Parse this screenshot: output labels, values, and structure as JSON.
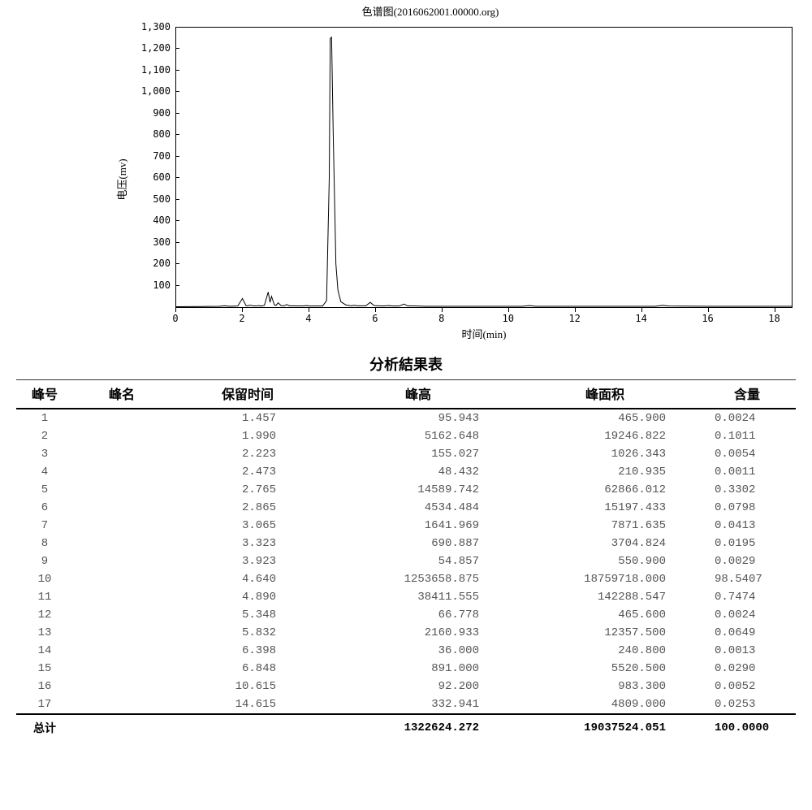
{
  "chart": {
    "type": "line",
    "title": "色谱图(2016062001.00000.org)",
    "xlabel": "时间(min)",
    "ylabel": "电压(mv)",
    "xlim": [
      0,
      18.5
    ],
    "ylim": [
      0,
      1300
    ],
    "xtick_step": 2,
    "xtick_count": 10,
    "ytick_step": 100,
    "ytick_count": 14,
    "line_color": "#000000",
    "line_width": 1,
    "background_color": "#ffffff",
    "border_color": "#000000",
    "title_fontsize": 13,
    "label_fontsize": 13,
    "tick_fontsize": 12,
    "points": [
      [
        0.0,
        2
      ],
      [
        0.8,
        3
      ],
      [
        1.3,
        4
      ],
      [
        1.457,
        6
      ],
      [
        1.6,
        4
      ],
      [
        1.85,
        5
      ],
      [
        1.99,
        40
      ],
      [
        2.1,
        6
      ],
      [
        2.15,
        6
      ],
      [
        2.223,
        9
      ],
      [
        2.3,
        6
      ],
      [
        2.4,
        5
      ],
      [
        2.473,
        7
      ],
      [
        2.55,
        5
      ],
      [
        2.65,
        8
      ],
      [
        2.765,
        70
      ],
      [
        2.82,
        22
      ],
      [
        2.865,
        50
      ],
      [
        2.95,
        10
      ],
      [
        3.0,
        8
      ],
      [
        3.065,
        20
      ],
      [
        3.15,
        7
      ],
      [
        3.25,
        6
      ],
      [
        3.323,
        12
      ],
      [
        3.4,
        6
      ],
      [
        3.8,
        5
      ],
      [
        3.923,
        7
      ],
      [
        4.0,
        5
      ],
      [
        4.4,
        5
      ],
      [
        4.52,
        30
      ],
      [
        4.6,
        600
      ],
      [
        4.63,
        1250
      ],
      [
        4.67,
        1255
      ],
      [
        4.72,
        800
      ],
      [
        4.8,
        200
      ],
      [
        4.86,
        80
      ],
      [
        4.89,
        60
      ],
      [
        4.95,
        25
      ],
      [
        5.1,
        10
      ],
      [
        5.25,
        6
      ],
      [
        5.348,
        8
      ],
      [
        5.45,
        6
      ],
      [
        5.7,
        6
      ],
      [
        5.832,
        22
      ],
      [
        5.95,
        7
      ],
      [
        6.2,
        5
      ],
      [
        6.398,
        7
      ],
      [
        6.5,
        5
      ],
      [
        6.7,
        5
      ],
      [
        6.848,
        14
      ],
      [
        6.95,
        6
      ],
      [
        7.5,
        4
      ],
      [
        8.5,
        4
      ],
      [
        9.5,
        4
      ],
      [
        10.4,
        4
      ],
      [
        10.615,
        7
      ],
      [
        10.8,
        4
      ],
      [
        12.0,
        4
      ],
      [
        13.5,
        4
      ],
      [
        14.4,
        4
      ],
      [
        14.615,
        8
      ],
      [
        14.8,
        5
      ],
      [
        16.0,
        4
      ],
      [
        17.5,
        4
      ],
      [
        18.5,
        4
      ]
    ]
  },
  "table": {
    "title": "分析結果表",
    "columns": [
      "峰号",
      "峰名",
      "保留时间",
      "峰高",
      "峰面积",
      "含量"
    ],
    "rows": [
      [
        "1",
        "",
        "1.457",
        "95.943",
        "465.900",
        "0.0024"
      ],
      [
        "2",
        "",
        "1.990",
        "5162.648",
        "19246.822",
        "0.1011"
      ],
      [
        "3",
        "",
        "2.223",
        "155.027",
        "1026.343",
        "0.0054"
      ],
      [
        "4",
        "",
        "2.473",
        "48.432",
        "210.935",
        "0.0011"
      ],
      [
        "5",
        "",
        "2.765",
        "14589.742",
        "62866.012",
        "0.3302"
      ],
      [
        "6",
        "",
        "2.865",
        "4534.484",
        "15197.433",
        "0.0798"
      ],
      [
        "7",
        "",
        "3.065",
        "1641.969",
        "7871.635",
        "0.0413"
      ],
      [
        "8",
        "",
        "3.323",
        "690.887",
        "3704.824",
        "0.0195"
      ],
      [
        "9",
        "",
        "3.923",
        "54.857",
        "550.900",
        "0.0029"
      ],
      [
        "10",
        "",
        "4.640",
        "1253658.875",
        "18759718.000",
        "98.5407"
      ],
      [
        "11",
        "",
        "4.890",
        "38411.555",
        "142288.547",
        "0.7474"
      ],
      [
        "12",
        "",
        "5.348",
        "66.778",
        "465.600",
        "0.0024"
      ],
      [
        "13",
        "",
        "5.832",
        "2160.933",
        "12357.500",
        "0.0649"
      ],
      [
        "14",
        "",
        "6.398",
        "36.000",
        "240.800",
        "0.0013"
      ],
      [
        "15",
        "",
        "6.848",
        "891.000",
        "5520.500",
        "0.0290"
      ],
      [
        "16",
        "",
        "10.615",
        "92.200",
        "983.300",
        "0.0052"
      ],
      [
        "17",
        "",
        "14.615",
        "332.941",
        "4809.000",
        "0.0253"
      ]
    ],
    "total_label": "总计",
    "total": [
      "",
      "",
      "",
      "1322624.272",
      "19037524.051",
      "100.0000"
    ],
    "header_fontsize": 16,
    "cell_fontsize": 14,
    "header_color": "#000000",
    "cell_color": "#555555",
    "rule_color": "#000000"
  }
}
